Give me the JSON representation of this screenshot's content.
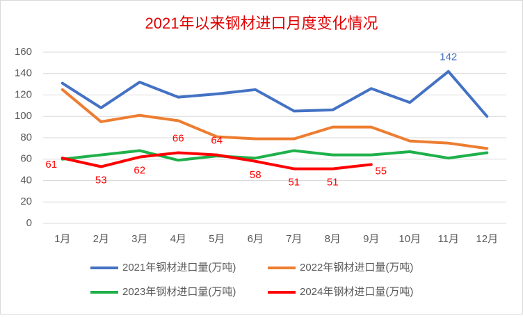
{
  "chart_data": {
    "type": "line",
    "title": "2021年以来钢材进口月度变化情况",
    "categories": [
      "1月",
      "2月",
      "3月",
      "4月",
      "5月",
      "6月",
      "7月",
      "8月",
      "9月",
      "10月",
      "11月",
      "12月"
    ],
    "series": [
      {
        "name": "2021年钢材进口量(万吨)",
        "color": "#4472c4",
        "values": [
          131,
          108,
          132,
          118,
          121,
          125,
          105,
          106,
          126,
          113,
          142,
          100
        ],
        "label_indices": [
          10
        ]
      },
      {
        "name": "2022年钢材进口量(万吨)",
        "color": "#ed7d31",
        "values": [
          125,
          95,
          101,
          96,
          81,
          79,
          79,
          90,
          90,
          77,
          75,
          70
        ]
      },
      {
        "name": "2023年钢材进口量(万吨)",
        "color": "#1fb04a",
        "values": [
          60,
          64,
          68,
          59,
          63,
          61,
          68,
          64,
          64,
          67,
          61,
          66
        ]
      },
      {
        "name": "2024年钢材进口量(万吨)",
        "color": "#ff0000",
        "values": [
          61,
          53,
          62,
          66,
          64,
          58,
          51,
          51,
          55,
          null,
          null,
          null
        ],
        "label_indices": [
          0,
          1,
          2,
          3,
          4,
          5,
          6,
          7,
          8
        ]
      }
    ],
    "ylim": [
      0,
      160
    ],
    "yticks": [
      0,
      20,
      40,
      60,
      80,
      100,
      120,
      140,
      160
    ],
    "grid": true,
    "legend": "bottom"
  }
}
